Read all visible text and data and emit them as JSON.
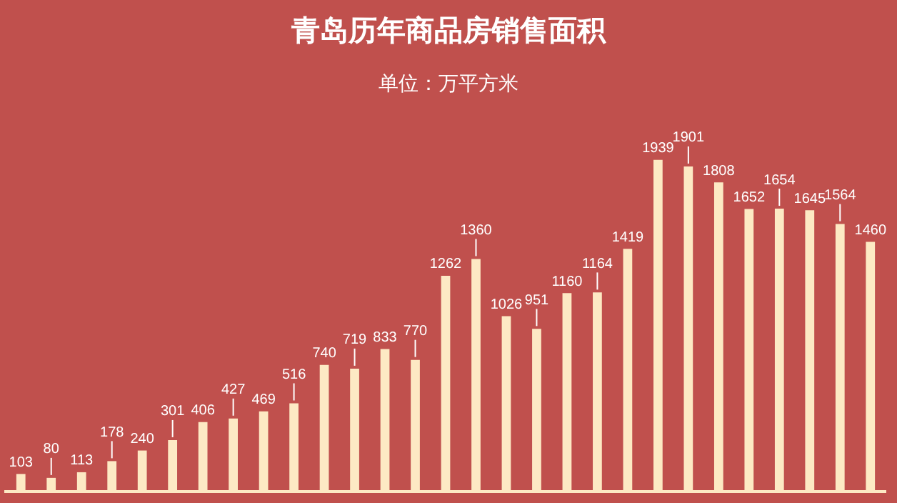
{
  "chart_data": {
    "type": "bar",
    "title": "青岛历年商品房销售面积",
    "subtitle": "单位：万平方米",
    "categories": [
      null,
      null,
      null,
      null,
      null,
      null,
      null,
      null,
      null,
      null,
      null,
      null,
      null,
      null,
      null,
      null,
      null,
      null,
      null,
      null,
      null,
      null,
      null,
      null,
      null,
      null,
      null,
      null,
      null
    ],
    "values": [
      103,
      80,
      113,
      178,
      240,
      301,
      406,
      427,
      469,
      516,
      740,
      719,
      833,
      770,
      1262,
      1360,
      1026,
      951,
      1160,
      1164,
      1419,
      1939,
      1901,
      1808,
      1652,
      1654,
      1645,
      1564,
      1460
    ],
    "color": "#fde9c4",
    "data_labels": true,
    "grid": false,
    "legend": false
  }
}
